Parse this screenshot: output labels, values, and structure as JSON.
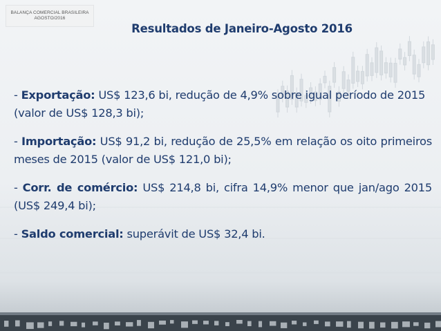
{
  "header": {
    "line1": "BALANÇA COMERCIAL BRASILEIRA",
    "line2": "AGOSTO/2016"
  },
  "title": "Resultados de Janeiro-Agosto 2016",
  "bullets": [
    {
      "dash": "- ",
      "label": "Exportação:",
      "text": " US$ 123,6 bi, redução de 4,9% sobre igual período de 2015 (valor de US$ 128,3 bi);"
    },
    {
      "dash": "- ",
      "label": "Importação:",
      "text": " US$ 91,2 bi, redução de 25,5% em relação os oito primeiros meses de 2015 (valor de US$ 121,0 bi);"
    },
    {
      "dash": "- ",
      "label": "Corr. de comércio:",
      "text": " US$ 214,8 bi, cifra 14,9% menor que jan/ago 2015 (US$ 249,4 bi);"
    },
    {
      "dash": "- ",
      "label": "Saldo comercial:",
      "text": " superávit de US$ 32,4 bi."
    }
  ],
  "colors": {
    "text": "#1f3c6e",
    "background": "#eceff2"
  }
}
